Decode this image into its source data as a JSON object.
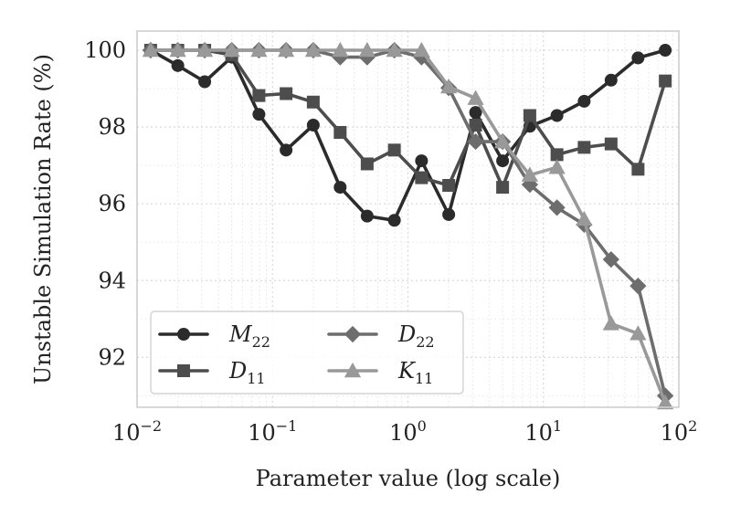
{
  "chart_data": {
    "type": "line",
    "xscale": "log",
    "xlim": [
      0.01,
      100
    ],
    "ylim": [
      90.7,
      100.5
    ],
    "xlabel": "Parameter value (log scale)",
    "ylabel": "Unstable Simulation Rate (%)",
    "x_ticks": [
      {
        "value": 0.01,
        "base": "10",
        "exp": "−2"
      },
      {
        "value": 0.1,
        "base": "10",
        "exp": "−1"
      },
      {
        "value": 1,
        "base": "10",
        "exp": "0"
      },
      {
        "value": 10,
        "base": "10",
        "exp": "1"
      },
      {
        "value": 100,
        "base": "10",
        "exp": "2"
      }
    ],
    "y_ticks": [
      92,
      94,
      96,
      98,
      100
    ],
    "grid": true,
    "legend_position": "lower-left",
    "x": [
      0.0126,
      0.02,
      0.0316,
      0.05,
      0.0794,
      0.126,
      0.2,
      0.316,
      0.5,
      0.794,
      1.26,
      2.0,
      3.16,
      5.0,
      7.94,
      12.6,
      20.0,
      31.6,
      50.0,
      79.4
    ],
    "series": [
      {
        "name": "M",
        "sub": "22",
        "marker": "circle",
        "color": "#2b2b2b",
        "values": [
          100.0,
          99.6,
          99.18,
          99.82,
          98.33,
          97.4,
          98.05,
          96.43,
          95.68,
          95.57,
          97.12,
          95.72,
          98.38,
          97.12,
          98.02,
          98.3,
          98.67,
          99.22,
          99.8,
          100.0
        ]
      },
      {
        "name": "D",
        "sub": "11",
        "marker": "square",
        "color": "#4d4d4d",
        "values": [
          100.0,
          100.0,
          100.0,
          99.88,
          98.82,
          98.87,
          98.65,
          97.86,
          97.04,
          97.4,
          96.68,
          96.48,
          98.05,
          96.43,
          98.3,
          97.28,
          97.47,
          97.56,
          96.9,
          99.2
        ]
      },
      {
        "name": "D",
        "sub": "22",
        "marker": "diamond",
        "color": "#6d6d6d",
        "values": [
          100.0,
          100.0,
          100.0,
          100.0,
          100.0,
          100.0,
          100.0,
          99.82,
          99.82,
          100.0,
          99.82,
          99.02,
          97.62,
          97.62,
          96.5,
          95.9,
          95.46,
          94.55,
          93.86,
          91.0
        ]
      },
      {
        "name": "K",
        "sub": "11",
        "marker": "triangle",
        "color": "#999999",
        "values": [
          100.0,
          100.0,
          100.0,
          100.0,
          100.0,
          100.0,
          100.0,
          100.0,
          100.0,
          100.0,
          100.0,
          99.05,
          98.75,
          97.62,
          96.75,
          96.95,
          95.6,
          92.88,
          92.62,
          90.82
        ]
      }
    ]
  }
}
